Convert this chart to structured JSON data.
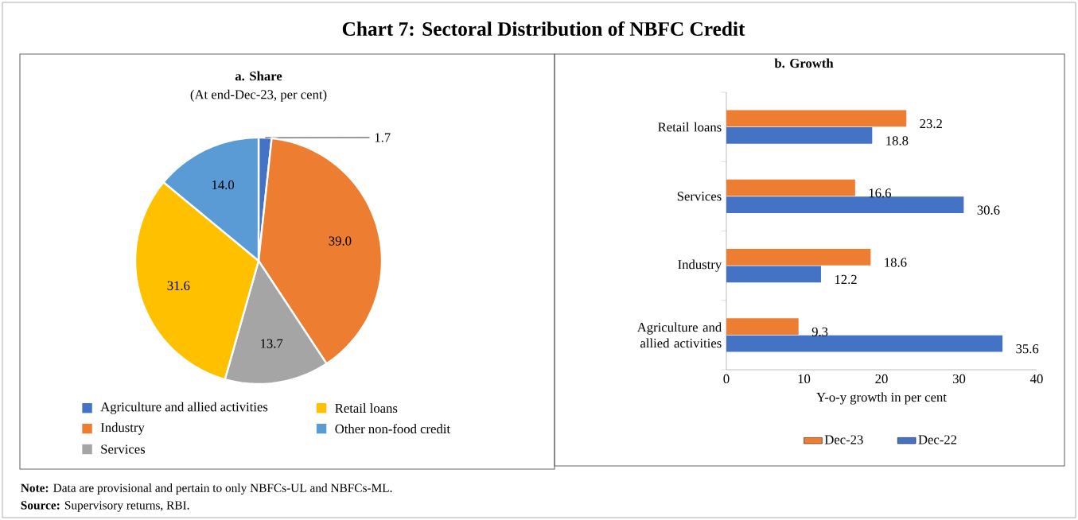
{
  "chart_data": [
    {
      "type": "pie",
      "title": "a. Share",
      "subtitle": "(At end-Dec-23, per cent)",
      "categories": [
        "Agriculture and allied activities",
        "Industry",
        "Services",
        "Retail loans",
        "Other non-food credit"
      ],
      "values": [
        1.7,
        39.0,
        13.7,
        31.6,
        14.0
      ],
      "colors": [
        "#4472c4",
        "#ed7d31",
        "#a5a5a5",
        "#ffc000",
        "#5b9bd5"
      ],
      "value_labels": [
        "1.7",
        "39.0",
        "13.7",
        "31.6",
        "14.0"
      ],
      "legend": "bottom",
      "annotations": [
        "Chart 7: Sectoral Distribution of NBFC Credit",
        "**Note:** Data are provisional and pertain to only NBFCs-UL and NBFCs-ML.",
        "**Source:** Supervisory returns, RBI."
      ]
    },
    {
      "type": "bar",
      "orientation": "horizontal",
      "title": "b. Growth",
      "categories": [
        "Retail loans",
        "Services",
        "Industry",
        "Agriculture and allied activities"
      ],
      "series": [
        {
          "name": "Dec-23",
          "color": "#ed7d31",
          "values": [
            23.2,
            16.6,
            18.6,
            9.3
          ]
        },
        {
          "name": "Dec-22",
          "color": "#4472c4",
          "values": [
            18.8,
            30.6,
            12.2,
            35.6
          ]
        }
      ],
      "xlim": [
        0,
        40
      ],
      "xticks": [
        0,
        10,
        20,
        30,
        40
      ],
      "xlabel": "Y-o-y growth in per cent",
      "data_labels": true,
      "legend": "bottom"
    }
  ]
}
